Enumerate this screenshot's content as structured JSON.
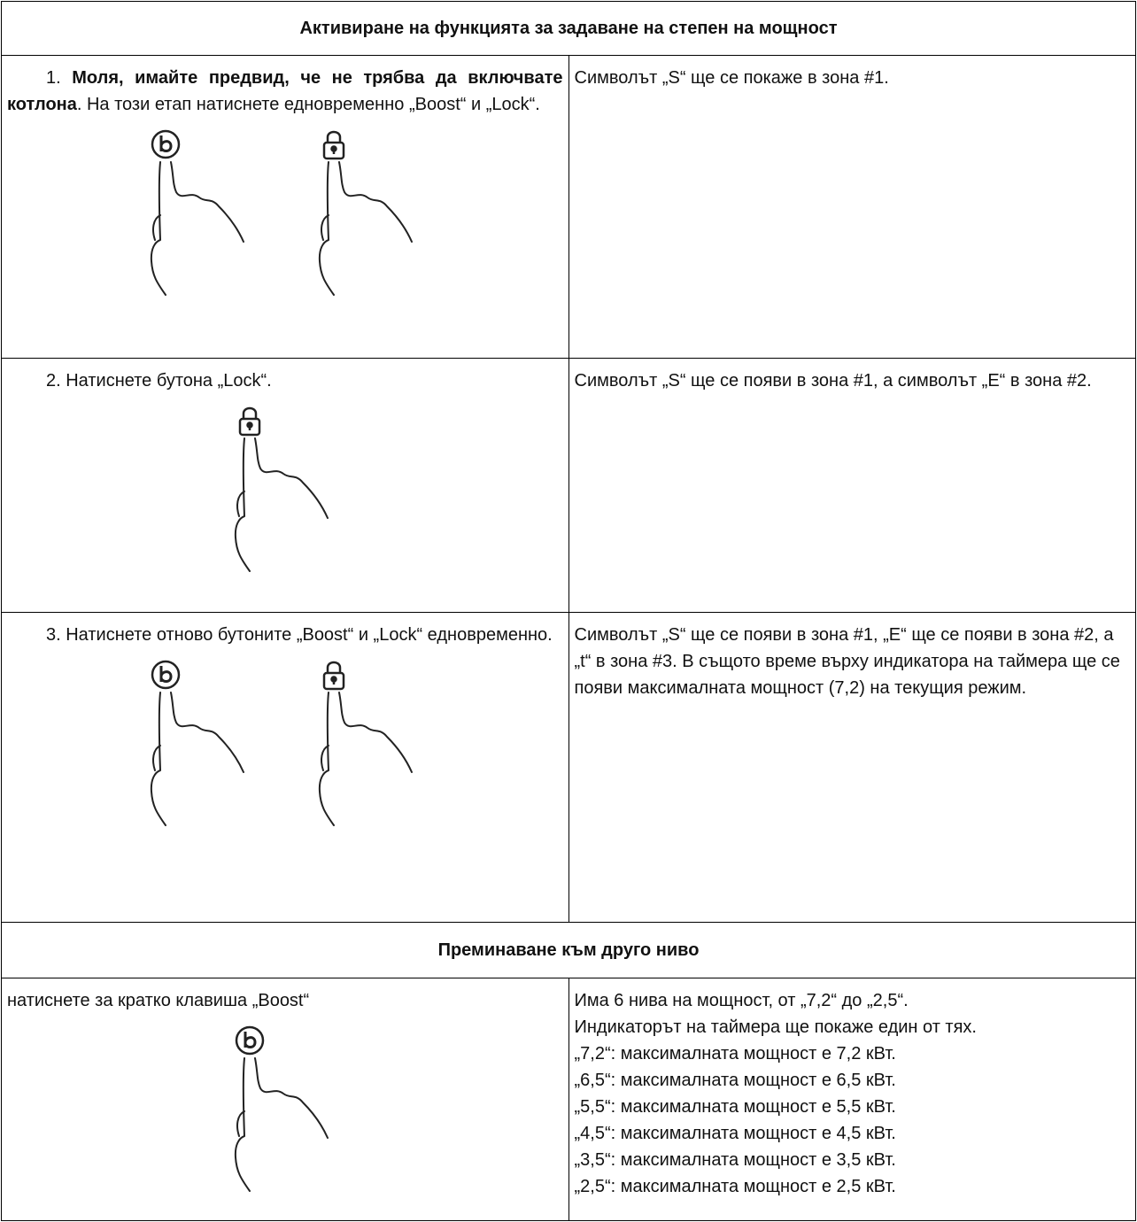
{
  "sections": [
    {
      "title": "Активиране на функцията за задаване на степен на мощност",
      "rows": [
        {
          "instruction": [
            "1. ",
            "Моля, имайте предвид, че не трябва да включвате котлона",
            ". На този етап натиснете едновременно „Boost“ и „Lock“."
          ],
          "result": [
            "Символът „S“ ще се покаже в зона #1."
          ]
        },
        {
          "instruction": [
            "2. Натиснете бутона „Lock“."
          ],
          "result": [
            "Символът „S“ ще се появи в зона #1, а символът „E“ в зона #2."
          ]
        },
        {
          "instruction": [
            "3. Натиснете отново бутоните „Boost“ и „Lock“ едновременно."
          ],
          "result": [
            "Символът „S“ ще се появи в зона #1, „E“ ще се появи в зона #2, а „t“ в зона #3. В същото време върху индикатора на таймера ще се появи максималната мощност (7,2) на текущия режим."
          ]
        }
      ]
    },
    {
      "title": "Преминаване към друго ниво",
      "rows": [
        {
          "instruction": [
            "натиснете за кратко клавиша „Boost“"
          ],
          "result": [
            "Има 6 нива на мощност, от „7,2“ до „2,5“.",
            "Индикаторът на таймера ще покаже един от тях.",
            "„7,2“: максималната мощност е 7,2 кВт.",
            "„6,5“: максималната мощност е 6,5 кВт.",
            "„5,5“: максималната мощност е 5,5 кВт.",
            "„4,5“: максималната мощност е 4,5 кВт.",
            "„3,5“: максималната мощност е 3,5 кВт.",
            "„2,5“: максималната мощност е 2,5 кВт."
          ]
        }
      ]
    }
  ]
}
